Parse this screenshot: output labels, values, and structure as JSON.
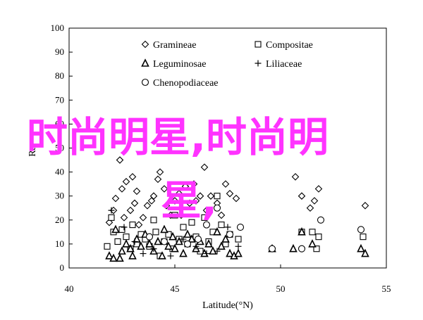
{
  "chart_data": {
    "type": "scatter",
    "title": "",
    "xlabel": "Latitude(°N)",
    "ylabel": "Ra",
    "xlim": [
      40,
      55
    ],
    "ylim": [
      0,
      100
    ],
    "xticks": [
      "40",
      "45",
      "50",
      "55"
    ],
    "yticks": [
      "0",
      "10",
      "20",
      "30",
      "40",
      "50",
      "60",
      "70",
      "80",
      "90",
      "100"
    ],
    "grid": false,
    "legend_position": "top",
    "series": [
      {
        "name": "Gramineae",
        "marker": "diamond",
        "points": [
          [
            41.9,
            19
          ],
          [
            42.1,
            24
          ],
          [
            42.2,
            29
          ],
          [
            42.4,
            45
          ],
          [
            42.5,
            33
          ],
          [
            42.6,
            21
          ],
          [
            42.7,
            36
          ],
          [
            42.9,
            24
          ],
          [
            43.0,
            38
          ],
          [
            43.1,
            27
          ],
          [
            43.2,
            32
          ],
          [
            43.3,
            18
          ],
          [
            43.5,
            21
          ],
          [
            43.7,
            26
          ],
          [
            43.9,
            28
          ],
          [
            44.0,
            30
          ],
          [
            44.2,
            37
          ],
          [
            44.3,
            40
          ],
          [
            44.5,
            33
          ],
          [
            44.6,
            26
          ],
          [
            44.8,
            22
          ],
          [
            45.0,
            28
          ],
          [
            45.2,
            31
          ],
          [
            45.3,
            22
          ],
          [
            45.5,
            34
          ],
          [
            45.7,
            27
          ],
          [
            45.9,
            35
          ],
          [
            46.0,
            28
          ],
          [
            46.2,
            30
          ],
          [
            46.4,
            42
          ],
          [
            46.5,
            24
          ],
          [
            46.7,
            30
          ],
          [
            47.0,
            27
          ],
          [
            47.2,
            22
          ],
          [
            47.4,
            35
          ],
          [
            47.6,
            31
          ],
          [
            47.9,
            29
          ],
          [
            50.7,
            38
          ],
          [
            51.0,
            30
          ],
          [
            51.4,
            25
          ],
          [
            51.6,
            28
          ],
          [
            51.8,
            33
          ],
          [
            54.0,
            26
          ]
        ]
      },
      {
        "name": "Compositae",
        "marker": "square",
        "points": [
          [
            41.8,
            9
          ],
          [
            42.0,
            21
          ],
          [
            42.1,
            15
          ],
          [
            42.3,
            11
          ],
          [
            42.5,
            16
          ],
          [
            42.7,
            13
          ],
          [
            42.9,
            8
          ],
          [
            43.0,
            18
          ],
          [
            43.2,
            10
          ],
          [
            43.4,
            14
          ],
          [
            43.6,
            12
          ],
          [
            43.8,
            9
          ],
          [
            44.0,
            20
          ],
          [
            44.1,
            15
          ],
          [
            44.3,
            5
          ],
          [
            44.5,
            11
          ],
          [
            44.7,
            14
          ],
          [
            44.9,
            8
          ],
          [
            45.0,
            22
          ],
          [
            45.2,
            12
          ],
          [
            45.4,
            17
          ],
          [
            45.6,
            10
          ],
          [
            45.8,
            19
          ],
          [
            46.0,
            13
          ],
          [
            46.2,
            7
          ],
          [
            46.4,
            21
          ],
          [
            46.6,
            11
          ],
          [
            46.8,
            15
          ],
          [
            47.0,
            30
          ],
          [
            47.2,
            18
          ],
          [
            47.4,
            10
          ],
          [
            47.6,
            14
          ],
          [
            48.0,
            12
          ],
          [
            51.0,
            15
          ],
          [
            51.5,
            15
          ],
          [
            51.8,
            13
          ],
          [
            51.7,
            8
          ],
          [
            53.9,
            13
          ]
        ]
      },
      {
        "name": "Leguminosae",
        "marker": "triangle",
        "points": [
          [
            41.9,
            5
          ],
          [
            42.1,
            4
          ],
          [
            42.2,
            16
          ],
          [
            42.4,
            4
          ],
          [
            42.5,
            7
          ],
          [
            42.7,
            10
          ],
          [
            42.9,
            8
          ],
          [
            43.0,
            5
          ],
          [
            43.2,
            12
          ],
          [
            43.4,
            9
          ],
          [
            43.6,
            14
          ],
          [
            43.8,
            10
          ],
          [
            44.0,
            7
          ],
          [
            44.2,
            11
          ],
          [
            44.4,
            5
          ],
          [
            44.5,
            16
          ],
          [
            44.7,
            9
          ],
          [
            44.9,
            13
          ],
          [
            45.0,
            8
          ],
          [
            45.2,
            11
          ],
          [
            45.4,
            6
          ],
          [
            45.6,
            14
          ],
          [
            45.8,
            12
          ],
          [
            46.0,
            8
          ],
          [
            46.2,
            11
          ],
          [
            46.4,
            6
          ],
          [
            46.6,
            10
          ],
          [
            46.8,
            7
          ],
          [
            47.0,
            15
          ],
          [
            47.2,
            9
          ],
          [
            47.4,
            12
          ],
          [
            47.6,
            6
          ],
          [
            47.8,
            5
          ],
          [
            48.0,
            6
          ],
          [
            49.6,
            8
          ],
          [
            50.6,
            8
          ],
          [
            51.0,
            15
          ],
          [
            51.5,
            10
          ],
          [
            53.8,
            8
          ],
          [
            54.0,
            6
          ]
        ]
      },
      {
        "name": "Liliaceae",
        "marker": "plus",
        "points": [
          [
            42.0,
            24
          ],
          [
            42.6,
            17
          ],
          [
            43.1,
            11
          ],
          [
            43.5,
            6
          ],
          [
            44.0,
            8
          ],
          [
            44.8,
            5
          ],
          [
            45.4,
            12
          ],
          [
            46.0,
            9
          ],
          [
            46.5,
            6
          ],
          [
            47.0,
            7
          ],
          [
            47.5,
            17
          ],
          [
            48.0,
            9
          ]
        ]
      },
      {
        "name": "Chenopodiaceae",
        "marker": "circle",
        "points": [
          [
            43.8,
            13
          ],
          [
            44.5,
            11
          ],
          [
            45.6,
            10
          ],
          [
            46.1,
            12
          ],
          [
            46.5,
            18
          ],
          [
            47.0,
            25
          ],
          [
            47.6,
            14
          ],
          [
            48.1,
            17
          ],
          [
            49.6,
            8
          ],
          [
            51.0,
            8
          ],
          [
            51.9,
            20
          ],
          [
            53.8,
            16
          ]
        ]
      }
    ]
  },
  "watermark": {
    "line1": "时尚明星,时尚明",
    "line2": "星,",
    "color": "#ff33ff"
  }
}
